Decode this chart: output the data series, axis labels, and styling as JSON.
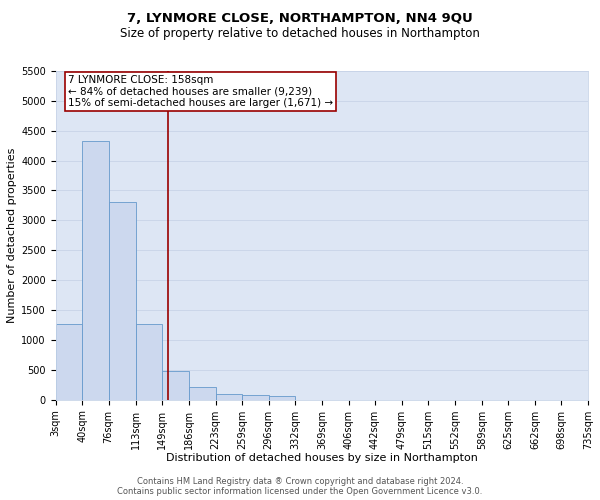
{
  "title": "7, LYNMORE CLOSE, NORTHAMPTON, NN4 9QU",
  "subtitle": "Size of property relative to detached houses in Northampton",
  "xlabel": "Distribution of detached houses by size in Northampton",
  "ylabel": "Number of detached properties",
  "footnote1": "Contains HM Land Registry data ® Crown copyright and database right 2024.",
  "footnote2": "Contains public sector information licensed under the Open Government Licence v3.0.",
  "bar_edges": [
    3,
    40,
    76,
    113,
    149,
    186,
    223,
    259,
    296,
    332,
    369,
    406,
    442,
    479,
    515,
    552,
    589,
    625,
    662,
    698,
    735
  ],
  "bar_heights": [
    1270,
    4330,
    3300,
    1270,
    480,
    210,
    90,
    70,
    55,
    0,
    0,
    0,
    0,
    0,
    0,
    0,
    0,
    0,
    0,
    0
  ],
  "bar_color": "#ccd8ee",
  "bar_edge_color": "#6699cc",
  "vline_x": 158,
  "vline_color": "#990000",
  "vline_linewidth": 1.2,
  "annotation_text": "7 LYNMORE CLOSE: 158sqm\n← 84% of detached houses are smaller (9,239)\n15% of semi-detached houses are larger (1,671) →",
  "annotation_box_color": "white",
  "annotation_box_edge": "#990000",
  "ylim": [
    0,
    5500
  ],
  "yticks": [
    0,
    500,
    1000,
    1500,
    2000,
    2500,
    3000,
    3500,
    4000,
    4500,
    5000,
    5500
  ],
  "xtick_labels": [
    "3sqm",
    "40sqm",
    "76sqm",
    "113sqm",
    "149sqm",
    "186sqm",
    "223sqm",
    "259sqm",
    "296sqm",
    "332sqm",
    "369sqm",
    "406sqm",
    "442sqm",
    "479sqm",
    "515sqm",
    "552sqm",
    "589sqm",
    "625sqm",
    "662sqm",
    "698sqm",
    "735sqm"
  ],
  "grid_color": "#c8d4e8",
  "bg_color": "#dde6f4",
  "title_fontsize": 9.5,
  "subtitle_fontsize": 8.5,
  "axis_label_fontsize": 8,
  "tick_fontsize": 7,
  "footnote_fontsize": 6,
  "annot_fontsize": 7.5
}
